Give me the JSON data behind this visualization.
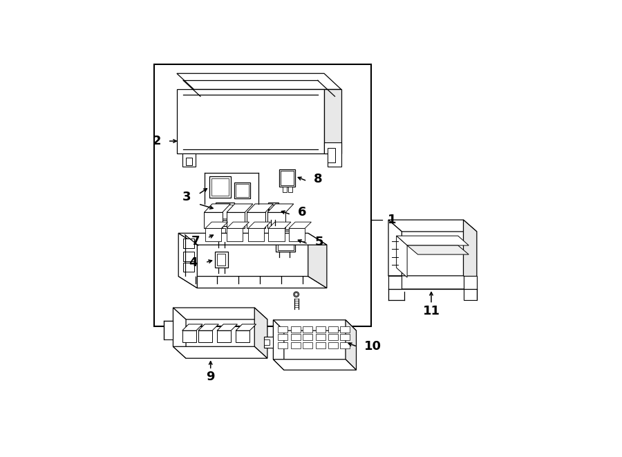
{
  "bg_color": "#ffffff",
  "line_color": "#000000",
  "fig_width": 9.0,
  "fig_height": 6.61,
  "lw": 0.9
}
